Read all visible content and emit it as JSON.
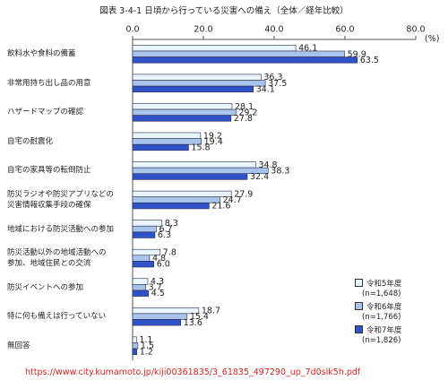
{
  "chart_data": {
    "type": "bar",
    "orientation": "horizontal",
    "title": "図表 3-4-1 日頃から行っている災害への備え（全体／経年比較）",
    "x_unit": "(%)",
    "categories": [
      "飲料水や食料の備蓄",
      "非常用持ち出し品の用意",
      "ハザードマップの確認",
      "自宅の耐震化",
      "自宅の家具等の転倒防止",
      "防災ラジオや防災アプリなどの\n災害情報収集手段の確保",
      "地域における防災活動への参加",
      "防災活動以外の地域活動への\n参加、地域住民との交流",
      "防災イベントへの参加",
      "特に何も備えは行っていない",
      "無回答"
    ],
    "series": [
      {
        "name": "令和5年度",
        "sample_size": "(n=1,648)",
        "color": "#e8f5fc",
        "values": [
          46.1,
          36.3,
          28.1,
          19.2,
          34.8,
          27.9,
          8.3,
          7.8,
          4.3,
          18.7,
          1.1
        ],
        "value_labels": [
          "46.1",
          "36.3",
          "28.1",
          "19.2",
          "34.8",
          "27.9",
          "8.3",
          "7.8",
          "4.3",
          "18.7",
          "1.1"
        ]
      },
      {
        "name": "令和6年度",
        "sample_size": "(n=1,766)",
        "color": "#a9c4ec",
        "values": [
          59.9,
          37.5,
          29.2,
          19.4,
          38.3,
          24.7,
          6.7,
          4.8,
          3.7,
          15.4,
          1.5
        ],
        "value_labels": [
          "59.9",
          "37.5",
          "29.2",
          "19.4",
          "38.3",
          "24.7",
          "6.7",
          "4.8",
          "3.7",
          "15.4",
          "1.5"
        ]
      },
      {
        "name": "令和7年度",
        "sample_size": "(n=1,826)",
        "color": "#2f52c8",
        "values": [
          63.5,
          34.1,
          27.8,
          15.8,
          32.4,
          21.6,
          6.3,
          6.0,
          4.5,
          13.6,
          1.2
        ],
        "value_labels": [
          "63.5",
          "34.1",
          "27.8",
          "15.8",
          "32.4",
          "21.6",
          "6.3",
          "6.0",
          "4.5",
          "13.6",
          "1.2"
        ]
      }
    ],
    "xlim": [
      0,
      80
    ],
    "xticks": [
      {
        "value": 0,
        "label": "0.0"
      },
      {
        "value": 20,
        "label": "20.0"
      },
      {
        "value": 40,
        "label": "40.0"
      },
      {
        "value": 60,
        "label": "60.0"
      },
      {
        "value": 80,
        "label": "80.0"
      }
    ],
    "source": "https://www.city.kumamoto.jp/kiji00361835/3_61835_497290_up_7d0slk5h.pdf"
  }
}
